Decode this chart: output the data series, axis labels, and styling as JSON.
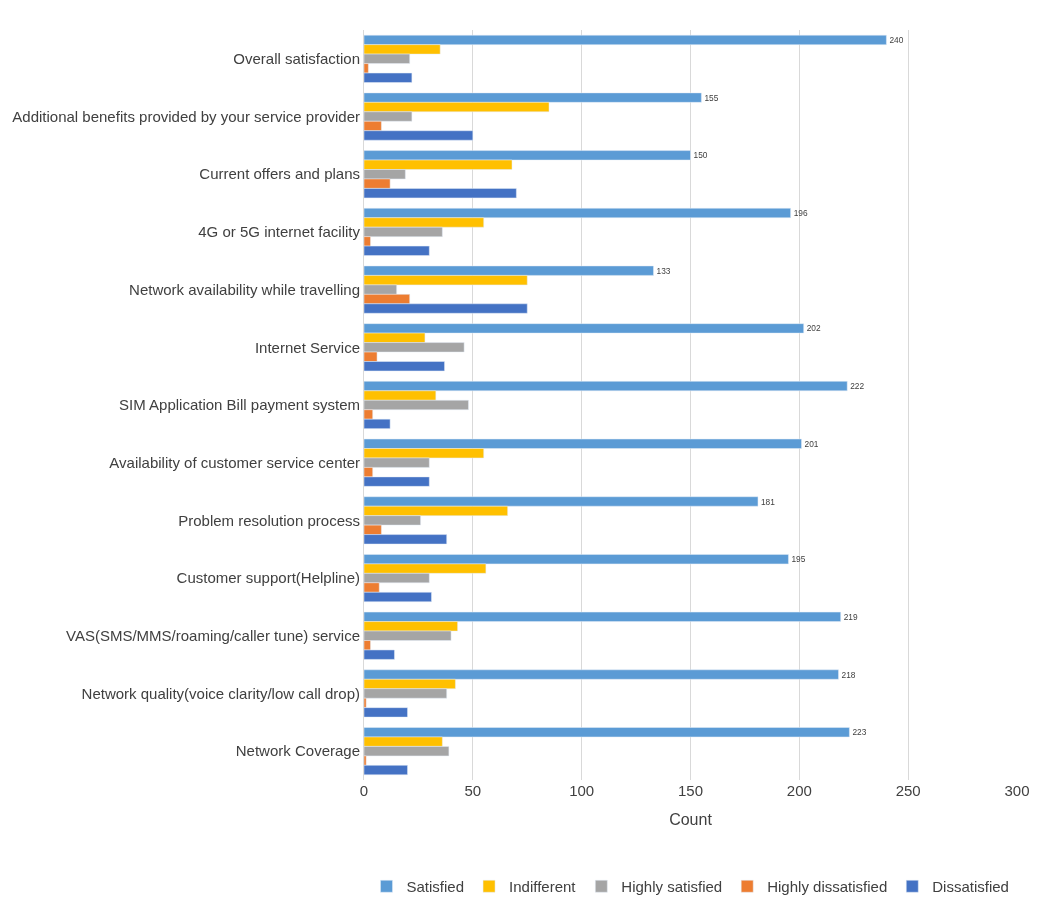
{
  "chart_data": {
    "type": "bar",
    "orientation": "horizontal",
    "xlabel": "Count",
    "categories": [
      "Overall satisfaction",
      "Additional benefits provided by your service provider",
      "Current offers and plans",
      "4G or 5G internet facility",
      "Network availability while travelling",
      "Internet Service",
      "SIM Application Bill payment system",
      "Availability of customer service center",
      "Problem resolution process",
      "Customer support(Helpline)",
      "VAS(SMS/MMS/roaming/caller tune) service",
      "Network quality(voice clarity/low call drop)",
      "Network Coverage"
    ],
    "series": [
      {
        "name": "Satisfied",
        "color": "#5b9bd5",
        "values": [
          240,
          155,
          150,
          196,
          133,
          202,
          222,
          201,
          181,
          195,
          219,
          218,
          223
        ],
        "value_labels": [
          "240",
          "155",
          "150",
          "196",
          "133",
          "202",
          "222",
          "201",
          "181",
          "195",
          "219",
          "218",
          "223"
        ]
      },
      {
        "name": "Indifferent",
        "color": "#ffc000",
        "values": [
          35,
          85,
          68,
          55,
          75,
          28,
          33,
          55,
          66,
          56,
          43,
          42,
          36
        ]
      },
      {
        "name": "Highly satisfied",
        "color": "#a5a5a5",
        "values": [
          21,
          22,
          19,
          36,
          15,
          46,
          48,
          30,
          26,
          30,
          40,
          38,
          39
        ]
      },
      {
        "name": "Highly dissatisfied",
        "color": "#ed7d31",
        "values": [
          2,
          8,
          12,
          3,
          21,
          6,
          4,
          4,
          8,
          7,
          3,
          1,
          1
        ]
      },
      {
        "name": "Dissatisfied",
        "color": "#4472c4",
        "values": [
          22,
          50,
          70,
          30,
          75,
          37,
          12,
          30,
          38,
          31,
          14,
          20,
          20
        ]
      }
    ],
    "xlim": [
      0,
      300
    ],
    "xticks": [
      0,
      50,
      100,
      150,
      200,
      250,
      300
    ],
    "grid": "x",
    "legend": "bottom"
  }
}
